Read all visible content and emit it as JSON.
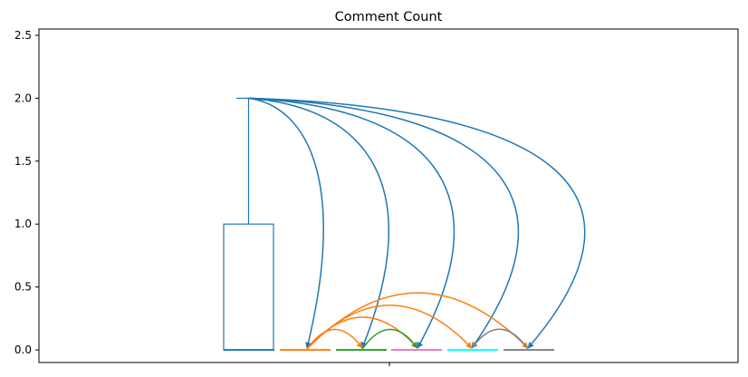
{
  "chart_data": {
    "type": "box",
    "title": "Comment Count",
    "xlabel": "",
    "ylabel": "",
    "ylim": [
      -0.1,
      2.55
    ],
    "y_ticks": [
      "0.0",
      "0.5",
      "1.0",
      "1.5",
      "2.0",
      "2.5"
    ],
    "x_ticks": [
      ""
    ],
    "grid": false,
    "box": {
      "color": "#1f77b4",
      "q1": 0.0,
      "median": 0.0,
      "q3": 1.0,
      "whisker_low": 0.0,
      "whisker_high": 2.0
    },
    "median_lines": [
      {
        "color": "#1f77b4",
        "value": 0.0
      },
      {
        "color": "#ff7f0e",
        "value": 0.0
      },
      {
        "color": "#2ca02c",
        "value": 0.0
      },
      {
        "color": "#e377c2",
        "value": 0.0
      },
      {
        "color": "#00ffff",
        "value": 0.0
      },
      {
        "color": "#7f7f7f",
        "value": 0.0
      }
    ],
    "arrows": [
      {
        "color": "#1f77b4",
        "from": 0,
        "to": 1
      },
      {
        "color": "#1f77b4",
        "from": 0,
        "to": 2
      },
      {
        "color": "#1f77b4",
        "from": 0,
        "to": 3
      },
      {
        "color": "#1f77b4",
        "from": 0,
        "to": 4
      },
      {
        "color": "#1f77b4",
        "from": 0,
        "to": 5
      },
      {
        "color": "#ff7f0e",
        "from": 1,
        "to": 2
      },
      {
        "color": "#ff7f0e",
        "from": 1,
        "to": 3
      },
      {
        "color": "#ff7f0e",
        "from": 1,
        "to": 4
      },
      {
        "color": "#ff7f0e",
        "from": 1,
        "to": 5
      },
      {
        "color": "#2ca02c",
        "from": 2,
        "to": 3
      },
      {
        "color": "#7f7f7f",
        "from": 5,
        "to": 4
      }
    ]
  }
}
